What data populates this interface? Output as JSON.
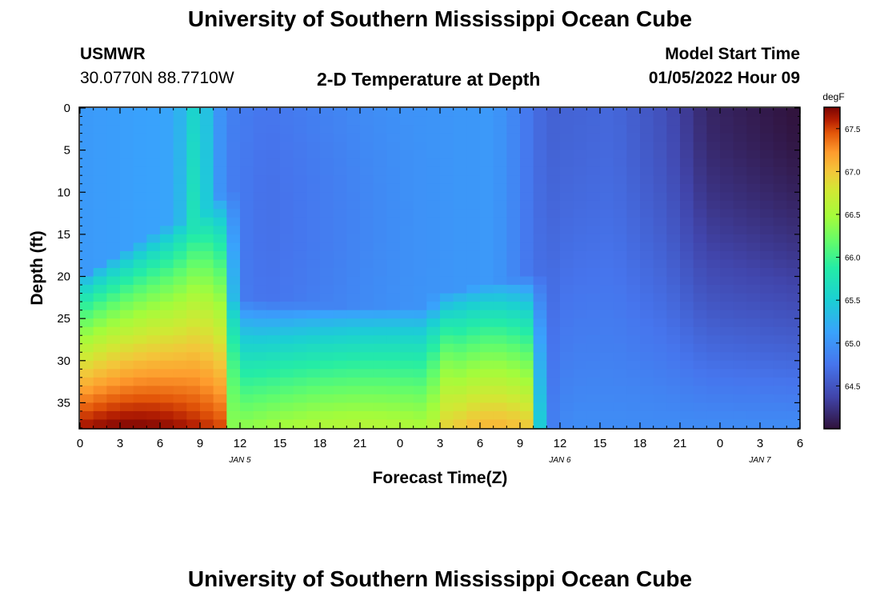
{
  "header": {
    "title": "University of Southern Mississippi Ocean Cube",
    "station": "USMWR",
    "coords": "30.0770N  88.7710W",
    "plot_title": "2-D Temperature at Depth",
    "model_start_label": "Model Start Time",
    "model_start_value": "01/05/2022 Hour 09"
  },
  "footer": {
    "title": "University of Southern Mississippi Ocean Cube"
  },
  "colors": {
    "low": "#2a1a58",
    "mid": "#6fdc3a",
    "high": "#7a0403",
    "frame": "#000000"
  },
  "chart_data": {
    "type": "heatmap",
    "title": "2-D Temperature at Depth",
    "xlabel": "Forecast Time(Z)",
    "ylabel": "Depth (ft)",
    "x_range_hours": [
      0,
      54
    ],
    "x_tick_hours": [
      0,
      3,
      6,
      9,
      12,
      15,
      18,
      21,
      24,
      27,
      30,
      33,
      36,
      39,
      42,
      45,
      48,
      51,
      54
    ],
    "x_tick_labels": [
      "0",
      "3",
      "6",
      "9",
      "12",
      "15",
      "18",
      "21",
      "0",
      "3",
      "6",
      "9",
      "12",
      "15",
      "18",
      "21",
      "0",
      "3",
      "6"
    ],
    "date_labels": [
      {
        "text": "JAN 5",
        "hour": 12
      },
      {
        "text": "JAN 6",
        "hour": 36
      },
      {
        "text": "JAN 7",
        "hour": 51
      }
    ],
    "y_range_ft": [
      0,
      38
    ],
    "y_ticks": [
      0,
      5,
      10,
      15,
      20,
      25,
      30,
      35
    ],
    "colorbar": {
      "label": "degF",
      "range": [
        64.0,
        67.75
      ],
      "ticks": [
        64.5,
        65.0,
        65.5,
        66.0,
        66.5,
        67.0,
        67.5
      ],
      "tick_labels": [
        "64.5",
        "65.0",
        "65.5",
        "66.0",
        "66.5",
        "67.0",
        "67.5"
      ]
    },
    "grid_step_hours": 1,
    "grid_step_ft": 1,
    "temperature_model": {
      "description": "Approximate temperature field (degF) by depth and forecast hour",
      "surface_profile": [
        [
          0,
          65.05
        ],
        [
          7,
          65.15
        ],
        [
          9,
          65.4
        ],
        [
          11,
          64.85
        ],
        [
          14,
          64.75
        ],
        [
          22,
          64.95
        ],
        [
          25,
          65.0
        ],
        [
          31,
          65.05
        ],
        [
          33,
          64.85
        ],
        [
          35,
          64.6
        ],
        [
          40,
          64.65
        ],
        [
          44,
          64.45
        ],
        [
          47,
          64.15
        ],
        [
          54,
          64.0
        ]
      ],
      "warm_bottom_segments": [
        {
          "hours": [
            0,
            11
          ],
          "top_ft": [
            28,
            18
          ],
          "peak_hour": 4,
          "max_temp": 67.75
        },
        {
          "hours": [
            11,
            27
          ],
          "top_ft": [
            31,
            32
          ],
          "peak_hour": 21,
          "max_temp": 66.6
        },
        {
          "hours": [
            27,
            34
          ],
          "top_ft": [
            30,
            28
          ],
          "peak_hour": 31,
          "max_temp": 67.1
        }
      ],
      "deep_cool_bottom": 64.95
    }
  }
}
